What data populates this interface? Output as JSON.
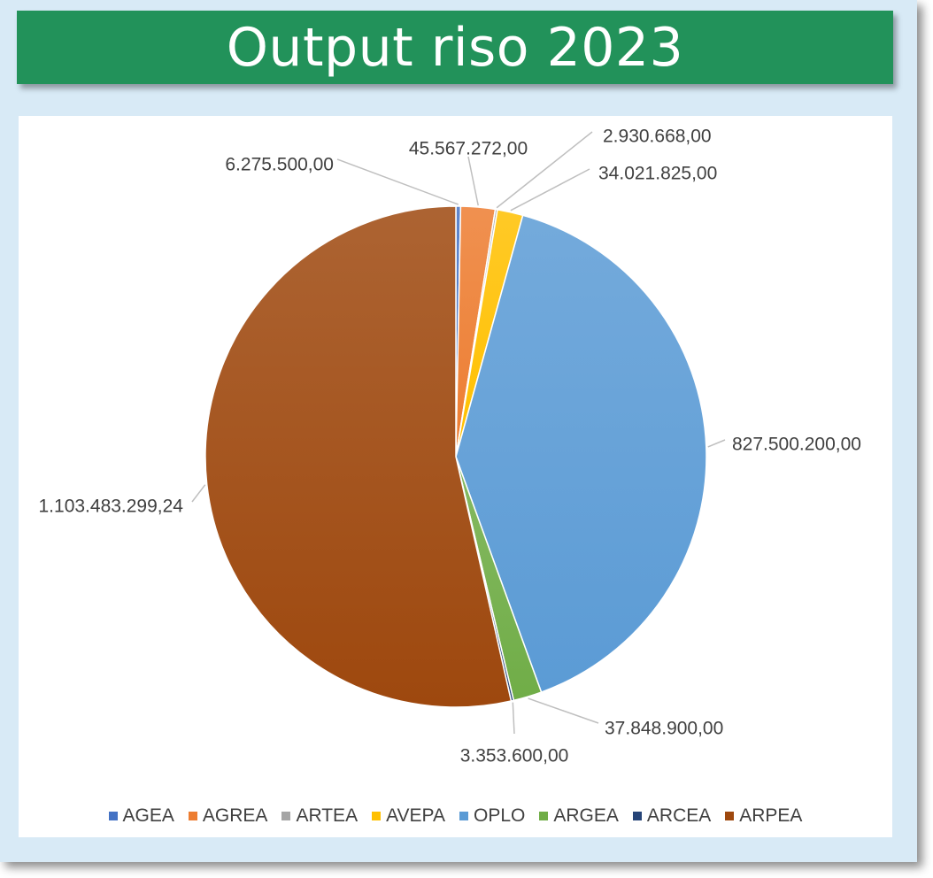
{
  "title": "Output riso 2023",
  "chart_data": {
    "type": "pie",
    "categories": [
      "AGEA",
      "AGREA",
      "ARTEA",
      "AVEPA",
      "OPLO",
      "ARGEA",
      "ARCEA",
      "ARPEA"
    ],
    "values": [
      6275500.0,
      45567272.0,
      2930668.0,
      34021825.0,
      827500200.0,
      37848900.0,
      3353600.0,
      1103483299.24
    ],
    "value_labels": [
      "6.275.500,00",
      "45.567.272,00",
      "2.930.668,00",
      "34.021.825,00",
      "827.500.200,00",
      "37.848.900,00",
      "3.353.600,00",
      "1.103.483.299,24"
    ],
    "colors": [
      "#4472c4",
      "#ed7d31",
      "#a5a5a5",
      "#ffc000",
      "#5b9bd5",
      "#70ad47",
      "#264478",
      "#9e480e"
    ],
    "start_angle_deg": 0,
    "direction": "clockwise",
    "legend_position": "bottom",
    "title": "Output riso 2023"
  }
}
